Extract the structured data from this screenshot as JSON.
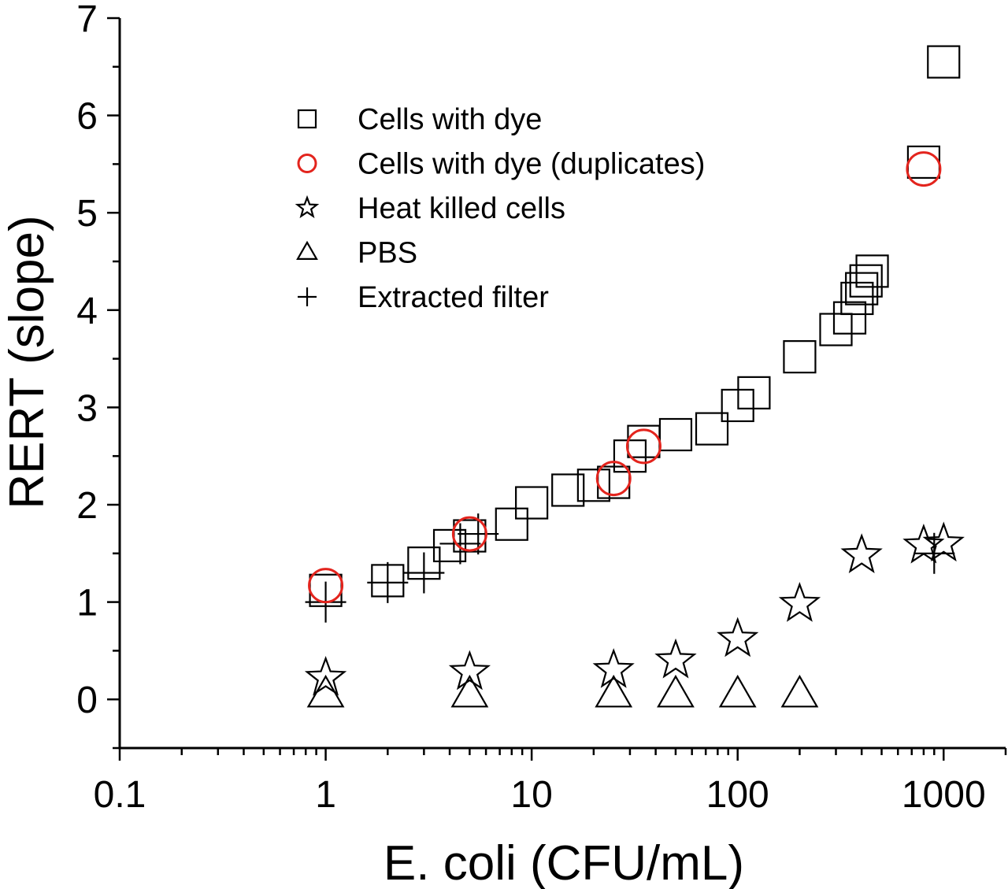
{
  "chart_data": {
    "type": "scatter",
    "xlabel": "E. coli (CFU/mL)",
    "ylabel": "RERT (slope)",
    "xscale": "log",
    "xlim": [
      0.1,
      2000
    ],
    "ylim": [
      -0.5,
      7
    ],
    "xticks": [
      {
        "value": 0.1,
        "label": "0.1"
      },
      {
        "value": 1,
        "label": "1"
      },
      {
        "value": 10,
        "label": "10"
      },
      {
        "value": 100,
        "label": "100"
      },
      {
        "value": 1000,
        "label": "1000"
      }
    ],
    "yticks": [
      {
        "value": 0,
        "label": "0"
      },
      {
        "value": 1,
        "label": "1"
      },
      {
        "value": 2,
        "label": "2"
      },
      {
        "value": 3,
        "label": "3"
      },
      {
        "value": 4,
        "label": "4"
      },
      {
        "value": 5,
        "label": "5"
      },
      {
        "value": 6,
        "label": "6"
      },
      {
        "value": 7,
        "label": "7"
      }
    ],
    "legend_position": "upper-left",
    "grid": false,
    "series": [
      {
        "name": "Cells with dye",
        "marker": "square",
        "color": "#000000",
        "points": [
          {
            "x": 1,
            "y": 1.12
          },
          {
            "x": 2,
            "y": 1.22
          },
          {
            "x": 3,
            "y": 1.4
          },
          {
            "x": 4,
            "y": 1.58
          },
          {
            "x": 5,
            "y": 1.68
          },
          {
            "x": 8,
            "y": 1.8
          },
          {
            "x": 10,
            "y": 2.02
          },
          {
            "x": 15,
            "y": 2.15
          },
          {
            "x": 20,
            "y": 2.2
          },
          {
            "x": 25,
            "y": 2.23
          },
          {
            "x": 30,
            "y": 2.5
          },
          {
            "x": 35,
            "y": 2.65
          },
          {
            "x": 50,
            "y": 2.72
          },
          {
            "x": 75,
            "y": 2.78
          },
          {
            "x": 100,
            "y": 3.02
          },
          {
            "x": 120,
            "y": 3.15
          },
          {
            "x": 200,
            "y": 3.52
          },
          {
            "x": 300,
            "y": 3.8
          },
          {
            "x": 350,
            "y": 3.92
          },
          {
            "x": 380,
            "y": 4.12
          },
          {
            "x": 400,
            "y": 4.22
          },
          {
            "x": 420,
            "y": 4.3
          },
          {
            "x": 450,
            "y": 4.4
          },
          {
            "x": 800,
            "y": 5.52
          },
          {
            "x": 1000,
            "y": 6.55
          }
        ]
      },
      {
        "name": "Cells with dye (duplicates)",
        "marker": "circle",
        "color": "#e3241d",
        "points": [
          {
            "x": 1,
            "y": 1.17
          },
          {
            "x": 5,
            "y": 1.7
          },
          {
            "x": 25,
            "y": 2.27
          },
          {
            "x": 35,
            "y": 2.6
          },
          {
            "x": 800,
            "y": 5.45
          }
        ]
      },
      {
        "name": "Heat killed cells",
        "marker": "star",
        "color": "#000000",
        "points": [
          {
            "x": 1,
            "y": 0.22
          },
          {
            "x": 5,
            "y": 0.28
          },
          {
            "x": 25,
            "y": 0.3
          },
          {
            "x": 50,
            "y": 0.4
          },
          {
            "x": 100,
            "y": 0.62
          },
          {
            "x": 200,
            "y": 0.98
          },
          {
            "x": 400,
            "y": 1.48
          },
          {
            "x": 800,
            "y": 1.58
          },
          {
            "x": 1000,
            "y": 1.6
          }
        ]
      },
      {
        "name": "PBS",
        "marker": "triangle",
        "color": "#000000",
        "points": [
          {
            "x": 1,
            "y": 0.05
          },
          {
            "x": 5,
            "y": 0.05
          },
          {
            "x": 25,
            "y": 0.05
          },
          {
            "x": 50,
            "y": 0.05
          },
          {
            "x": 100,
            "y": 0.05
          },
          {
            "x": 200,
            "y": 0.05
          }
        ]
      },
      {
        "name": "Extracted filter",
        "marker": "plus",
        "color": "#000000",
        "points": [
          {
            "x": 1,
            "y": 1.0
          },
          {
            "x": 2,
            "y": 1.2
          },
          {
            "x": 3,
            "y": 1.3
          },
          {
            "x": 4.5,
            "y": 1.6
          },
          {
            "x": 5.5,
            "y": 1.7
          },
          {
            "x": 900,
            "y": 1.5
          }
        ]
      }
    ]
  }
}
